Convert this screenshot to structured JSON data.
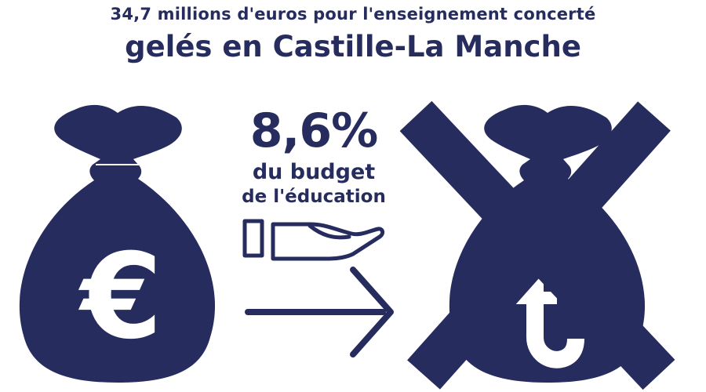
{
  "title_line1": "34,7 millions d'euros pour l'enseignement concerté",
  "title_line2": "gelés en Castille-La Manche",
  "percentage": "8,6%",
  "subtitle_line1": "du budget",
  "subtitle_line2": "de l'éducation",
  "left_bag_symbol": "€",
  "colors": {
    "navy": "#262c5e",
    "white": "#ffffff"
  },
  "icons": [
    "money-bag-euro-icon",
    "hand-giving-icon",
    "arrow-right-icon",
    "money-bag-crossed-icon",
    "cross-mark-icon"
  ]
}
